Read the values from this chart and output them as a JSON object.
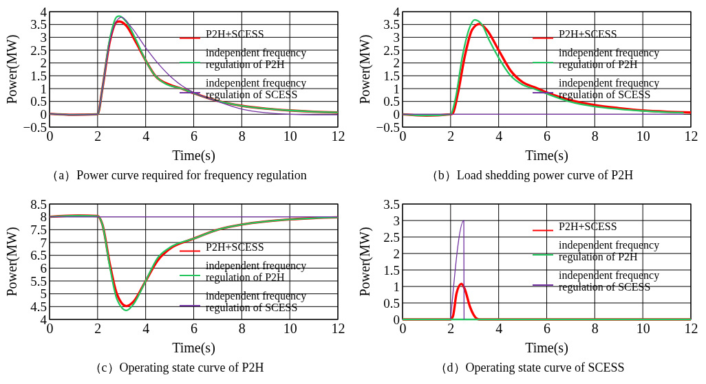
{
  "chart_data": [
    {
      "type": "line",
      "title": "（a）Power curve required for frequency regulation",
      "xlabel": "Time(s)",
      "ylabel": "Power(MW)",
      "xlim": [
        0,
        12
      ],
      "xticks": [
        0,
        2,
        4,
        6,
        8,
        10,
        12
      ],
      "ylim": [
        -0.5,
        4
      ],
      "yticks": [
        -0.5,
        0,
        0.5,
        1,
        1.5,
        2,
        2.5,
        3,
        3.5,
        4
      ],
      "grid": true,
      "legend": "right",
      "series": [
        {
          "name": "P2H+SCESS",
          "color": "#ff0000",
          "x": [
            0,
            1,
            2,
            2.2,
            2.5,
            2.8,
            2.9,
            3.2,
            3.6,
            4,
            4.4,
            5,
            5.5,
            6,
            7,
            8,
            9,
            10,
            11,
            12
          ],
          "values": [
            0.02,
            -0.02,
            0,
            1,
            2.8,
            3.6,
            3.62,
            3.45,
            2.8,
            2.1,
            1.5,
            1.15,
            1,
            0.82,
            0.52,
            0.33,
            0.22,
            0.15,
            0.1,
            0.07
          ]
        },
        {
          "name": "independent frequency regulation of P2H",
          "color": "#22c55e",
          "x": [
            0,
            1,
            2,
            2.2,
            2.5,
            2.8,
            2.9,
            3.2,
            3.6,
            4,
            4.4,
            4.8,
            5.5,
            6,
            7,
            8,
            9,
            10,
            11,
            12
          ],
          "values": [
            0.02,
            -0.02,
            0,
            1,
            2.9,
            3.8,
            3.83,
            3.6,
            2.9,
            2.1,
            1.5,
            1.2,
            1,
            0.82,
            0.52,
            0.33,
            0.22,
            0.15,
            0.1,
            0.07
          ]
        },
        {
          "name": "independent frequency regulation of SCESS",
          "color": "#7030a0",
          "x": [
            0,
            1,
            2,
            2.2,
            2.5,
            2.8,
            3,
            3.4,
            4,
            4.5,
            5,
            5.5,
            6,
            7,
            8,
            9,
            10,
            11,
            12
          ],
          "values": [
            0.02,
            -0.02,
            0,
            1,
            2.8,
            3.65,
            3.78,
            3.4,
            2.6,
            2,
            1.5,
            1.12,
            0.85,
            0.5,
            0.2,
            0.06,
            0,
            -0.02,
            -0.02
          ]
        }
      ]
    },
    {
      "type": "line",
      "title": "（b）Load shedding power curve of P2H",
      "xlabel": "Time(s)",
      "ylabel": "Power(MW)",
      "xlim": [
        0,
        12
      ],
      "xticks": [
        0,
        2,
        4,
        6,
        8,
        10,
        12
      ],
      "ylim": [
        -0.5,
        4
      ],
      "yticks": [
        -0.5,
        0,
        0.5,
        1,
        1.5,
        2,
        2.5,
        3,
        3.5,
        4
      ],
      "grid": true,
      "legend": "right",
      "series": [
        {
          "name": "P2H+SCESS",
          "color": "#ff0000",
          "x": [
            0,
            1,
            2,
            2.1,
            2.3,
            2.6,
            2.9,
            3.2,
            3.5,
            4,
            4.5,
            5,
            5.5,
            6,
            7,
            8,
            9,
            10,
            11,
            12
          ],
          "values": [
            0,
            -0.05,
            0,
            0.05,
            0.8,
            2.3,
            3.3,
            3.52,
            3.3,
            2.5,
            1.7,
            1.25,
            1.05,
            0.85,
            0.55,
            0.36,
            0.24,
            0.15,
            0.1,
            0.07
          ]
        },
        {
          "name": "independent frequency regulation of P2H",
          "color": "#22c55e",
          "x": [
            0,
            1,
            2,
            2.2,
            2.5,
            2.8,
            3,
            3.3,
            3.6,
            4,
            4.5,
            5,
            5.5,
            6,
            7,
            8,
            9,
            10,
            11,
            11.7
          ],
          "values": [
            0,
            -0.05,
            0,
            0.6,
            2.3,
            3.4,
            3.68,
            3.5,
            2.9,
            2.2,
            1.5,
            1.15,
            0.98,
            0.8,
            0.48,
            0.3,
            0.2,
            0.13,
            0.08,
            0.06
          ]
        },
        {
          "name": "independent frequency regulation of SCESS",
          "color": "#7030a0",
          "x": [
            0,
            11.7
          ],
          "values": [
            0,
            0
          ]
        }
      ]
    },
    {
      "type": "line",
      "title": "（c）Operating state curve of P2H",
      "xlabel": "Time(s)",
      "ylabel": "Power(MW)",
      "xlim": [
        0,
        12
      ],
      "xticks": [
        0,
        2,
        4,
        6,
        8,
        10,
        12
      ],
      "ylim": [
        4,
        8.5
      ],
      "yticks": [
        4,
        4.5,
        5,
        5.5,
        6,
        6.5,
        7,
        7.5,
        8,
        8.5
      ],
      "grid": true,
      "legend": "bottom right",
      "series": [
        {
          "name": "P2H+SCESS",
          "color": "#ff0000",
          "x": [
            0,
            1.2,
            2,
            2.2,
            2.5,
            2.8,
            3.2,
            3.5,
            4,
            4.5,
            5,
            6,
            7,
            8,
            9,
            10,
            11,
            12
          ],
          "values": [
            8,
            8.05,
            8.03,
            7.7,
            6.2,
            5,
            4.52,
            4.7,
            5.5,
            6.3,
            6.75,
            7.15,
            7.5,
            7.7,
            7.82,
            7.9,
            7.95,
            7.98
          ]
        },
        {
          "name": "independent frequency regulation of P2H",
          "color": "#22c55e",
          "x": [
            0,
            1.2,
            2,
            2.2,
            2.5,
            2.8,
            3.2,
            3.5,
            4,
            4.5,
            5,
            6,
            7,
            8,
            9,
            10,
            11,
            12
          ],
          "values": [
            8,
            8.05,
            8.03,
            7.7,
            6.1,
            4.8,
            4.35,
            4.6,
            5.5,
            6.4,
            6.8,
            7.15,
            7.5,
            7.7,
            7.82,
            7.9,
            7.95,
            7.98
          ]
        },
        {
          "name": "independent frequency regulation of SCESS",
          "color": "#7030a0",
          "x": [
            0,
            12
          ],
          "values": [
            8,
            8
          ]
        }
      ]
    },
    {
      "type": "line",
      "title": "（d）Operating state curve of SCESS",
      "xlabel": "Time(s)",
      "ylabel": "Power(MW)",
      "xlim": [
        0,
        12
      ],
      "xticks": [
        0,
        2,
        4,
        6,
        8,
        10,
        12
      ],
      "ylim": [
        0,
        3.5
      ],
      "yticks": [
        0,
        0.5,
        1,
        1.5,
        2,
        2.5,
        3,
        3.5
      ],
      "grid": true,
      "legend": "right",
      "series": [
        {
          "name": "P2H+SCESS",
          "color": "#ff0000",
          "x": [
            0,
            2,
            2.1,
            2.25,
            2.45,
            2.6,
            2.8,
            3.1,
            3.2,
            12
          ],
          "values": [
            0,
            0,
            0.1,
            0.8,
            1.08,
            0.9,
            0.4,
            0.02,
            0,
            0
          ]
        },
        {
          "name": "independent frequency regulation of P2H",
          "color": "#22c55e",
          "x": [
            0,
            12
          ],
          "values": [
            0,
            0
          ]
        },
        {
          "name": "independent frequency regulation of SCESS",
          "color": "#7030a0",
          "x": [
            2,
            2.55,
            2.56
          ],
          "values": [
            0,
            3,
            0
          ]
        }
      ]
    }
  ]
}
